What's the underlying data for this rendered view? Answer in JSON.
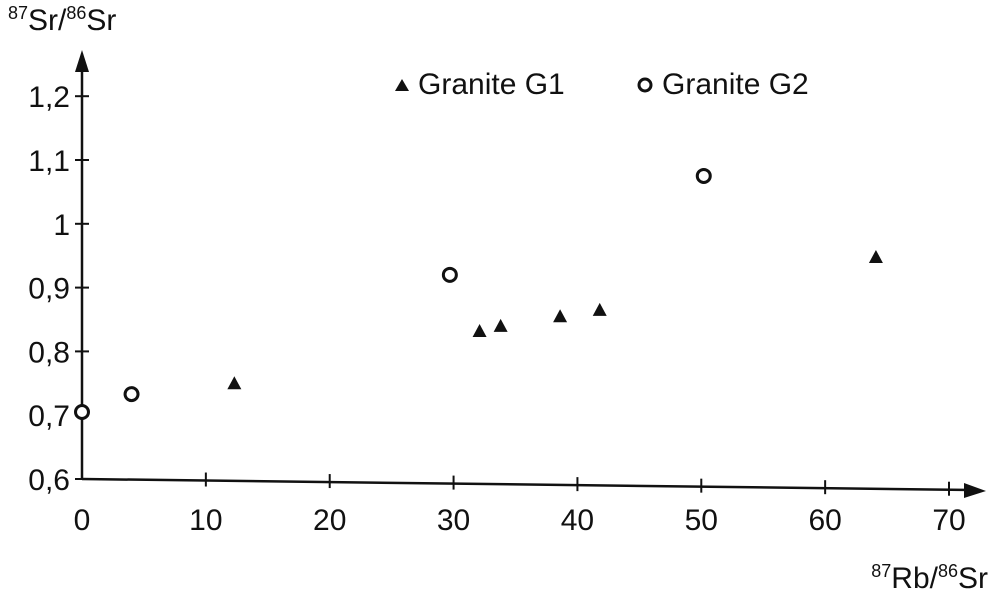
{
  "chart_data": {
    "type": "scatter",
    "ylabel": {
      "sup1": "87",
      "mid": "Sr/",
      "sup2": "86",
      "end": "Sr"
    },
    "xlabel": {
      "sup1": "87",
      "mid": "Rb/",
      "sup2": "86",
      "end": "Sr"
    },
    "xlim": [
      0,
      70
    ],
    "ylim": [
      0.6,
      1.25
    ],
    "xticks": [
      0,
      10,
      20,
      30,
      40,
      50,
      60,
      70
    ],
    "xtick_labels": [
      "0",
      "10",
      "20",
      "30",
      "40",
      "50",
      "60",
      "70"
    ],
    "yticks": [
      0.6,
      0.7,
      0.8,
      0.9,
      1.0,
      1.1,
      1.2
    ],
    "ytick_labels": [
      "0,6",
      "0,7",
      "0,8",
      "0,9",
      "1",
      "1,1",
      "1,2"
    ],
    "grid": false,
    "legend_position": "top",
    "series": [
      {
        "name": "Granite G1",
        "marker": "filled-triangle",
        "color": "#111111",
        "points": [
          {
            "x": 12.3,
            "y": 0.75
          },
          {
            "x": 32.1,
            "y": 0.832
          },
          {
            "x": 33.8,
            "y": 0.84
          },
          {
            "x": 38.6,
            "y": 0.855
          },
          {
            "x": 41.8,
            "y": 0.865
          },
          {
            "x": 64.1,
            "y": 0.948
          }
        ]
      },
      {
        "name": "Granite G2",
        "marker": "hollow-circle",
        "color": "#111111",
        "points": [
          {
            "x": 0.0,
            "y": 0.705
          },
          {
            "x": 4.0,
            "y": 0.733
          },
          {
            "x": 29.7,
            "y": 0.92
          },
          {
            "x": 50.2,
            "y": 1.075
          }
        ]
      }
    ]
  }
}
